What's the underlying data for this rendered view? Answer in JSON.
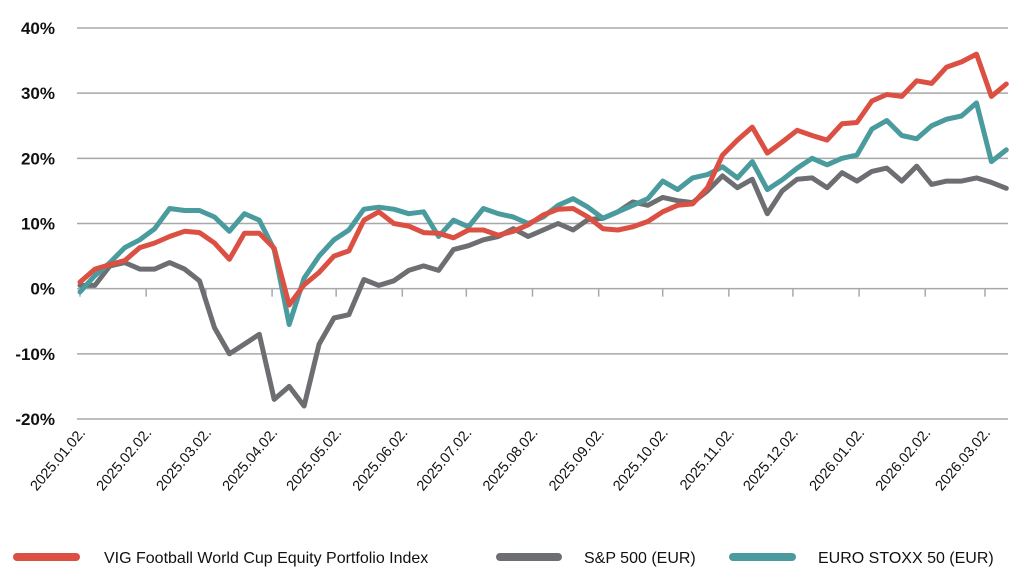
{
  "chart_data": {
    "type": "line",
    "title": "",
    "xlabel": "",
    "ylabel": "",
    "ylim": [
      -20,
      40
    ],
    "yticks": [
      40,
      30,
      20,
      10,
      0,
      -10,
      -20
    ],
    "ytick_labels": [
      "40%",
      "30%",
      "20%",
      "10%",
      "0%",
      "-10%",
      "-20%"
    ],
    "xtick_dates": [
      "2025-01-02",
      "2025-02-02",
      "2025-03-02",
      "2025-04-02",
      "2025-05-02",
      "2025-06-02",
      "2025-07-02",
      "2025-08-02",
      "2025-09-02",
      "2025-10-02",
      "2025-11-02",
      "2025-12-02",
      "2026-01-02",
      "2026-02-02",
      "2026-03-02"
    ],
    "xtick_labels": [
      "2025.01.02.",
      "2025.02.02.",
      "2025.03.02.",
      "2025.04.02.",
      "2025.05.02.",
      "2025.06.02.",
      "2025.07.02.",
      "2025.08.02.",
      "2025.09.02.",
      "2025.10.02.",
      "2025.11.02.",
      "2025.12.02.",
      "2026.01.02.",
      "2026.02.02.",
      "2026.03.02."
    ],
    "grid": true,
    "legend_position": "bottom",
    "x": [
      "2025-01-02",
      "2025-01-09",
      "2025-01-16",
      "2025-01-23",
      "2025-01-30",
      "2025-02-06",
      "2025-02-13",
      "2025-02-20",
      "2025-02-27",
      "2025-03-06",
      "2025-03-13",
      "2025-03-20",
      "2025-03-27",
      "2025-04-03",
      "2025-04-10",
      "2025-04-17",
      "2025-04-24",
      "2025-05-01",
      "2025-05-08",
      "2025-05-15",
      "2025-05-22",
      "2025-05-29",
      "2025-06-05",
      "2025-06-12",
      "2025-06-19",
      "2025-06-26",
      "2025-07-03",
      "2025-07-10",
      "2025-07-17",
      "2025-07-24",
      "2025-07-31",
      "2025-08-07",
      "2025-08-14",
      "2025-08-21",
      "2025-08-28",
      "2025-09-04",
      "2025-09-11",
      "2025-09-18",
      "2025-09-25",
      "2025-10-02",
      "2025-10-09",
      "2025-10-16",
      "2025-10-23",
      "2025-10-30",
      "2025-11-06",
      "2025-11-13",
      "2025-11-20",
      "2025-11-27",
      "2025-12-04",
      "2025-12-11",
      "2025-12-18",
      "2025-12-25",
      "2026-01-01",
      "2026-01-08",
      "2026-01-15",
      "2026-01-22",
      "2026-01-29",
      "2026-02-05",
      "2026-02-12",
      "2026-02-19",
      "2026-02-26",
      "2026-03-05",
      "2026-03-12"
    ],
    "series": [
      {
        "name": "VIG Football World Cup Equity Portfolio Index",
        "color": "#dc5044",
        "values": [
          1,
          3,
          3.7,
          4.3,
          6.3,
          7,
          8,
          8.8,
          8.6,
          7,
          4.5,
          8.5,
          8.5,
          6.2,
          -2.5,
          0.6,
          2.5,
          5,
          5.8,
          10.5,
          11.8,
          10,
          9.6,
          8.6,
          8.5,
          7.8,
          9,
          9,
          8.2,
          8.8,
          9.8,
          11.3,
          12.2,
          12.3,
          11,
          9.2,
          9,
          9.5,
          10.3,
          11.8,
          12.8,
          13,
          15.5,
          20.5,
          22.8,
          24.8,
          20.8,
          22.5,
          24.3,
          23.5,
          22.8,
          25.3,
          25.5,
          28.8,
          29.8,
          29.5,
          31.9,
          31.5,
          34,
          34.8,
          36,
          29.5,
          31.4
        ]
      },
      {
        "name": "S&P 500 (EUR)",
        "color": "#6d6e71",
        "values": [
          0.5,
          0.5,
          3.5,
          4,
          3,
          3,
          4,
          3,
          1.2,
          -6,
          -10,
          -8.5,
          -7,
          -17,
          -15,
          -18,
          -8.5,
          -4.5,
          -4,
          1.4,
          0.5,
          1.2,
          2.8,
          3.5,
          2.8,
          6,
          6.6,
          7.5,
          8,
          9.2,
          8,
          9,
          10,
          9,
          10.6,
          10.8,
          11.8,
          13.3,
          12.8,
          14,
          13.5,
          13.2,
          15,
          17.3,
          15.5,
          16.8,
          11.5,
          15,
          16.8,
          17,
          15.5,
          17.8,
          16.5,
          18,
          18.5,
          16.5,
          18.8,
          16,
          16.5,
          16.5,
          17,
          16.3,
          15.4
        ]
      },
      {
        "name": "EURO STOXX 50 (EUR)",
        "color": "#4a9b9d",
        "values": [
          -0.5,
          2,
          4,
          6.3,
          7.5,
          9.2,
          12.3,
          12,
          12,
          11,
          8.8,
          11.5,
          10.5,
          6,
          -5.5,
          1.6,
          5,
          7.5,
          9,
          12.2,
          12.5,
          12.2,
          11.5,
          11.8,
          8,
          10.5,
          9.5,
          12.3,
          11.5,
          11,
          10,
          11,
          12.8,
          13.8,
          12.5,
          10.8,
          11.8,
          12.8,
          13.8,
          16.5,
          15.2,
          17,
          17.5,
          18.7,
          17,
          19.5,
          15.2,
          16.7,
          18.5,
          20,
          19,
          20,
          20.5,
          24.5,
          25.8,
          23.5,
          23,
          25,
          26,
          26.5,
          28.5,
          19.5,
          21.3
        ]
      }
    ]
  }
}
